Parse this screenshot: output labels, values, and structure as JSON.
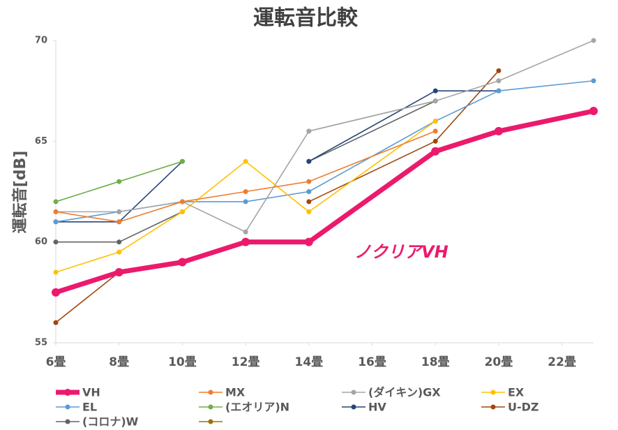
{
  "chart_data": {
    "type": "line",
    "title": "運転音比較",
    "y_label": "運転音[dB]",
    "annotation": "ノクリアVH",
    "x": [
      6,
      8,
      10,
      12,
      14,
      18,
      20,
      23
    ],
    "xlim": [
      6,
      23
    ],
    "xticks": [
      {
        "value": 6,
        "label": "6畳"
      },
      {
        "value": 8,
        "label": "8畳"
      },
      {
        "value": 10,
        "label": "10畳"
      },
      {
        "value": 12,
        "label": "12畳"
      },
      {
        "value": 14,
        "label": "14畳"
      },
      {
        "value": 16,
        "label": "16畳"
      },
      {
        "value": 18,
        "label": "18畳"
      },
      {
        "value": 20,
        "label": "20畳"
      },
      {
        "value": 22,
        "label": "22畳"
      }
    ],
    "ylim": [
      55,
      70
    ],
    "yticks": [
      55,
      60,
      65,
      70
    ],
    "series": [
      {
        "name": "VH",
        "color": "#eb1a6c",
        "values": [
          57.5,
          58.5,
          59,
          60,
          60,
          64.5,
          65.5,
          66.5
        ]
      },
      {
        "name": "MX",
        "color": "#ed7d31",
        "values": [
          61.5,
          61,
          62,
          62.5,
          63,
          65.5,
          null,
          null
        ]
      },
      {
        "name": "(ダイキン)GX",
        "color": "#a5a5a5",
        "values": [
          61.5,
          61.5,
          62,
          60.5,
          65.5,
          67,
          68,
          70
        ]
      },
      {
        "name": "EX",
        "color": "#ffc000",
        "values": [
          58.5,
          59.5,
          61.5,
          64,
          61.5,
          66,
          null,
          null
        ]
      },
      {
        "name": "EL",
        "color": "#5b9bd5",
        "values": [
          61,
          61.5,
          62,
          62,
          62.5,
          66,
          67.5,
          68
        ]
      },
      {
        "name": "(エオリア)N",
        "color": "#70ad47",
        "values": [
          62,
          63,
          64,
          null,
          65.5,
          67,
          null,
          null
        ]
      },
      {
        "name": "HV",
        "color": "#264478",
        "values": [
          61,
          61,
          64,
          null,
          64,
          67.5,
          67.5,
          null
        ]
      },
      {
        "name": "U-DZ",
        "color": "#9e480e",
        "values": [
          56,
          58.5,
          59,
          null,
          62,
          65,
          68.5,
          null
        ]
      },
      {
        "name": "(コロナ)W",
        "color": "#636363",
        "values": [
          60,
          60,
          61.5,
          null,
          64,
          67,
          null,
          null
        ]
      },
      {
        "color": "#997300",
        "values": [
          null,
          null,
          null,
          null,
          null,
          null,
          null,
          null
        ]
      }
    ]
  }
}
